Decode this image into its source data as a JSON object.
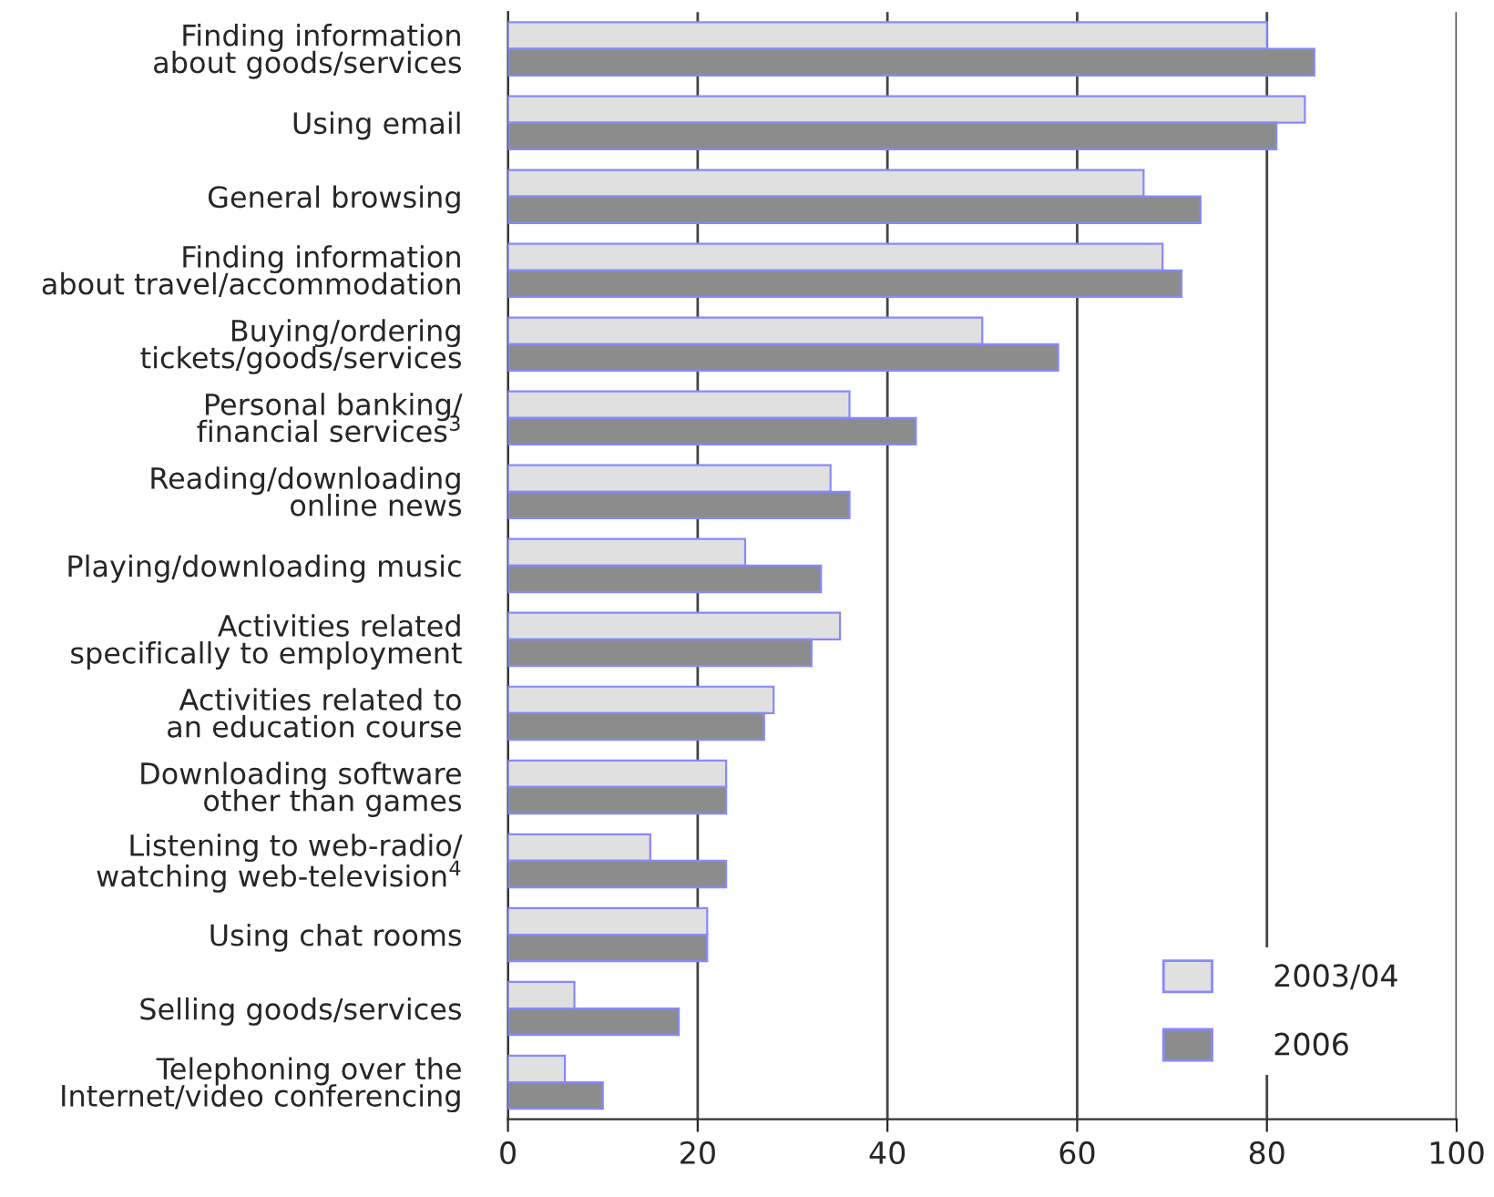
{
  "chart_data": {
    "type": "bar",
    "orientation": "horizontal",
    "categories": [
      "Finding information\nabout goods/services",
      "Using email",
      "General browsing",
      "Finding information\nabout travel/accommodation",
      "Buying/ordering\ntickets/goods/services",
      "Personal banking/\nfinancial services$^{3}$",
      "Reading/downloading\nonline news",
      "Playing/downloading music",
      "Activities related\nspecifically to employment",
      "Activities related to\nan education course",
      "Downloading software\nother than games",
      "Listening to web-radio/\nwatching web-television$^{4}$",
      "Using chat rooms",
      "Selling goods/services",
      "Telephoning over the\nInternet/video conferencing"
    ],
    "series": [
      {
        "name": "2003/04",
        "color": "#e0e0e0",
        "values": [
          80,
          84,
          67,
          69,
          50,
          36,
          34,
          25,
          35,
          28,
          23,
          15,
          21,
          7,
          6
        ]
      },
      {
        "name": "2006",
        "color": "#8c8c8c",
        "values": [
          85,
          81,
          73,
          71,
          58,
          43,
          36,
          33,
          32,
          27,
          23,
          23,
          21,
          18,
          10
        ]
      }
    ],
    "xlim": [
      0,
      100
    ],
    "xticks": [
      0,
      20,
      40,
      60,
      80,
      100
    ],
    "grid": "x",
    "legend": "bottom right"
  }
}
